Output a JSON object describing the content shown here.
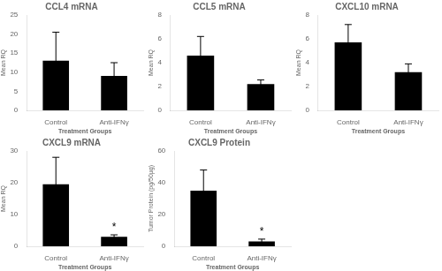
{
  "chart_data": [
    {
      "type": "bar",
      "title": "CCL4 mRNA",
      "ylabel": "Mean RQ",
      "xlabel": "Treatment Groups",
      "categories": [
        "Control",
        "Anti-IFNγ"
      ],
      "values": [
        13.0,
        9.0
      ],
      "errors": [
        7.5,
        3.5
      ],
      "ylim": [
        0,
        25
      ],
      "yticks": [
        0,
        5,
        10,
        15,
        20,
        25
      ],
      "color": "#000000",
      "grid": false
    },
    {
      "type": "bar",
      "title": "CCL5 mRNA",
      "ylabel": "Mean RQ",
      "xlabel": "Treatment Groups",
      "categories": [
        "Control",
        "Anti-IFNγ"
      ],
      "values": [
        4.6,
        2.2
      ],
      "errors": [
        1.6,
        0.35
      ],
      "ylim": [
        0,
        8
      ],
      "yticks": [
        0,
        2,
        4,
        6,
        8
      ],
      "color": "#000000",
      "grid": false
    },
    {
      "type": "bar",
      "title": "CXCL10 mRNA",
      "ylabel": "Mean RQ",
      "xlabel": "Treatment Groups",
      "categories": [
        "Control",
        "Anti-IFNγ"
      ],
      "values": [
        5.7,
        3.2
      ],
      "errors": [
        1.5,
        0.7
      ],
      "ylim": [
        0,
        8
      ],
      "yticks": [
        0,
        2,
        4,
        6,
        8
      ],
      "color": "#000000",
      "grid": false
    },
    {
      "type": "bar",
      "title": "CXCL9 mRNA",
      "ylabel": "Mean RQ",
      "xlabel": "Treatment Groups",
      "categories": [
        "Control",
        "Anti-IFNγ"
      ],
      "values": [
        19.5,
        3.0
      ],
      "errors": [
        8.5,
        0.6
      ],
      "ylim": [
        0,
        30
      ],
      "yticks": [
        0,
        10,
        20,
        30
      ],
      "color": "#000000",
      "grid": false,
      "annotations": [
        {
          "text": "*",
          "x": "Anti-IFNγ"
        }
      ]
    },
    {
      "type": "bar",
      "title": "CXCL9 Protein",
      "ylabel": "Tumor Protein (pg/50μg)",
      "xlabel": "Treatment Groups",
      "categories": [
        "Control",
        "Anti-IFNγ"
      ],
      "values": [
        35.0,
        3.0
      ],
      "errors": [
        13.0,
        1.5
      ],
      "ylim": [
        0,
        60
      ],
      "yticks": [
        0,
        20,
        40,
        60
      ],
      "color": "#000000",
      "grid": false,
      "annotations": [
        {
          "text": "*",
          "x": "Anti-IFNγ"
        }
      ]
    }
  ]
}
